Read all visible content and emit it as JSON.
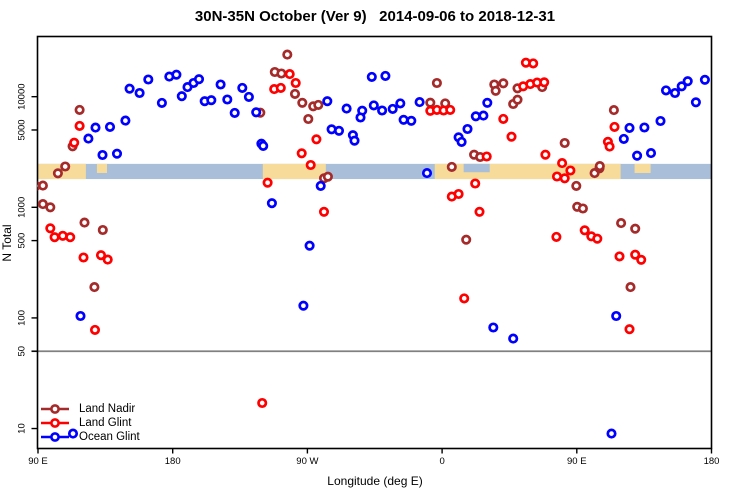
{
  "title": "30N-35N October (Ver 9)   2014-09-06 to 2018-12-31",
  "legend": {
    "items": [
      {
        "label": "Land Nadir",
        "color": "#A52A2A"
      },
      {
        "label": "Land Glint",
        "color": "#FF0000"
      },
      {
        "label": "Ocean Glint",
        "color": "#0000FF"
      }
    ]
  },
  "chart_data": {
    "type": "scatter",
    "title": "30N-35N October (Ver 9)   2014-09-06 to 2018-12-31",
    "xlabel": "Longitude (deg E)",
    "ylabel": "N Total",
    "x_axis": {
      "range_deg_e": [
        89.67,
        540
      ],
      "ticks": [
        {
          "lon": 90,
          "label": "90 E"
        },
        {
          "lon": 180,
          "label": "180"
        },
        {
          "lon": 270,
          "label": "90 W"
        },
        {
          "lon": 360,
          "label": "0"
        },
        {
          "lon": 450,
          "label": "90 E"
        },
        {
          "lon": 540,
          "label": "180"
        }
      ]
    },
    "y_axis": {
      "scale": "log",
      "range": [
        6.6,
        35000
      ],
      "ticks": [
        10000,
        5000,
        1000,
        500,
        100,
        50,
        10
      ]
    },
    "reference_line": {
      "n": 50,
      "color": "#808080"
    },
    "map_band": {
      "n_top": 2470,
      "n_bottom": 1800,
      "ocean_color": "#A9BFD9",
      "land_color": "#F6DB9B",
      "land_segments_deg_e": [
        {
          "from": 89.67,
          "to": 122.0,
          "partial": false
        },
        {
          "from": 129.4,
          "to": 136.1,
          "partial": true
        },
        {
          "from": 240.2,
          "to": 282.3,
          "partial": false
        },
        {
          "from": 355.1,
          "to": 479.3,
          "partial": false
        },
        {
          "from": 488.6,
          "to": 499.3,
          "partial": true
        }
      ],
      "sea_notches_deg_e": [
        {
          "from": 374.4,
          "to": 391.8
        }
      ]
    },
    "series": [
      {
        "name": "Land Nadir",
        "color": "#A52A2A",
        "points": [
          [
            117.8,
            7600
          ],
          [
            113.1,
            3560
          ],
          [
            108.2,
            2340
          ],
          [
            103.3,
            2030
          ],
          [
            93.3,
            1570
          ],
          [
            88.5,
            1560
          ],
          [
            93.3,
            1070
          ],
          [
            98.2,
            1000
          ],
          [
            121.1,
            727
          ],
          [
            133.3,
            623
          ],
          [
            127.7,
            190
          ],
          [
            256.6,
            24000
          ],
          [
            248.2,
            16700
          ],
          [
            252.6,
            16200
          ],
          [
            261.7,
            10600
          ],
          [
            266.6,
            8800
          ],
          [
            238.5,
            7160
          ],
          [
            273.9,
            8180
          ],
          [
            277.3,
            8420
          ],
          [
            270.6,
            6280
          ],
          [
            281.1,
            1830
          ],
          [
            283.7,
            1890
          ],
          [
            356.5,
            13300
          ],
          [
            352.1,
            8820
          ],
          [
            362.1,
            8700
          ],
          [
            381.4,
            2990
          ],
          [
            385.4,
            2850
          ],
          [
            366.5,
            2320
          ],
          [
            376.1,
            510
          ],
          [
            394.9,
            12900
          ],
          [
            400.9,
            13200
          ],
          [
            395.8,
            11300
          ],
          [
            410.4,
            11900
          ],
          [
            426.9,
            12200
          ],
          [
            407.5,
            8580
          ],
          [
            410.4,
            9400
          ],
          [
            441.9,
            3810
          ],
          [
            461.9,
            2040
          ],
          [
            465.2,
            2250
          ],
          [
            449.7,
            1560
          ],
          [
            450.3,
            1010
          ],
          [
            454.1,
            975
          ],
          [
            474.8,
            7560
          ],
          [
            465.4,
            2360
          ],
          [
            479.6,
            720
          ],
          [
            489.0,
            640
          ],
          [
            485.9,
            190
          ]
        ]
      },
      {
        "name": "Land Glint",
        "color": "#FF0000",
        "points": [
          [
            117.8,
            5440
          ],
          [
            114.2,
            3840
          ],
          [
            98.2,
            646
          ],
          [
            101.1,
            537
          ],
          [
            106.6,
            553
          ],
          [
            111.5,
            537
          ],
          [
            120.4,
            352
          ],
          [
            132.1,
            369
          ],
          [
            136.6,
            337
          ],
          [
            128.1,
            78
          ],
          [
            258.2,
            16000
          ],
          [
            262.2,
            13300
          ],
          [
            247.8,
            11700
          ],
          [
            252.2,
            12000
          ],
          [
            276.0,
            4120
          ],
          [
            266.2,
            3080
          ],
          [
            272.2,
            2410
          ],
          [
            243.4,
            1670
          ],
          [
            281.1,
            910
          ],
          [
            239.8,
            17
          ],
          [
            352.1,
            7460
          ],
          [
            356.5,
            7600
          ],
          [
            361.0,
            7500
          ],
          [
            365.4,
            7600
          ],
          [
            389.8,
            2880
          ],
          [
            382.1,
            1640
          ],
          [
            366.5,
            1250
          ],
          [
            371.0,
            1320
          ],
          [
            385.0,
            910
          ],
          [
            374.8,
            150
          ],
          [
            416.0,
            20300
          ],
          [
            420.9,
            20000
          ],
          [
            414.2,
            12400
          ],
          [
            418.9,
            13000
          ],
          [
            423.5,
            13400
          ],
          [
            428.2,
            13500
          ],
          [
            400.9,
            6300
          ],
          [
            406.4,
            4350
          ],
          [
            429.0,
            2990
          ],
          [
            440.2,
            2510
          ],
          [
            445.7,
            2150
          ],
          [
            441.9,
            1830
          ],
          [
            436.8,
            1900
          ],
          [
            436.4,
            540
          ],
          [
            455.3,
            620
          ],
          [
            459.7,
            547
          ],
          [
            463.7,
            520
          ],
          [
            475.2,
            5330
          ],
          [
            470.8,
            3910
          ],
          [
            471.9,
            3540
          ],
          [
            478.5,
            360
          ],
          [
            489.0,
            373
          ],
          [
            493.0,
            335
          ],
          [
            485.2,
            79
          ]
        ]
      },
      {
        "name": "Ocean Glint",
        "color": "#0000FF",
        "points": [
          [
            151.2,
            11800
          ],
          [
            157.9,
            10800
          ],
          [
            128.4,
            5250
          ],
          [
            138.1,
            5330
          ],
          [
            148.4,
            6080
          ],
          [
            123.7,
            4180
          ],
          [
            133.1,
            2970
          ],
          [
            142.8,
            3050
          ],
          [
            118.4,
            104
          ],
          [
            113.4,
            9
          ],
          [
            163.7,
            14300
          ],
          [
            177.7,
            15200
          ],
          [
            182.5,
            15800
          ],
          [
            189.9,
            12200
          ],
          [
            193.9,
            13300
          ],
          [
            197.6,
            14400
          ],
          [
            172.8,
            8790
          ],
          [
            186.1,
            10100
          ],
          [
            201.4,
            9100
          ],
          [
            205.8,
            9290
          ],
          [
            212.0,
            12900
          ],
          [
            216.5,
            9430
          ],
          [
            221.4,
            7130
          ],
          [
            226.5,
            12000
          ],
          [
            230.9,
            9960
          ],
          [
            235.8,
            7230
          ],
          [
            239.3,
            3760
          ],
          [
            283.3,
            9100
          ],
          [
            296.2,
            7800
          ],
          [
            306.6,
            7470
          ],
          [
            305.5,
            6480
          ],
          [
            286.2,
            5070
          ],
          [
            291.1,
            4920
          ],
          [
            300.4,
            4490
          ],
          [
            301.5,
            4000
          ],
          [
            240.5,
            3590
          ],
          [
            278.9,
            1560
          ],
          [
            246.3,
            1090
          ],
          [
            271.5,
            450
          ],
          [
            267.3,
            129
          ],
          [
            313.0,
            15100
          ],
          [
            322.1,
            15400
          ],
          [
            314.4,
            8340
          ],
          [
            319.9,
            7500
          ],
          [
            327.0,
            7760
          ],
          [
            332.1,
            8700
          ],
          [
            345.0,
            8940
          ],
          [
            334.3,
            6180
          ],
          [
            339.4,
            6050
          ],
          [
            382.5,
            6650
          ],
          [
            387.6,
            6740
          ],
          [
            377.0,
            5100
          ],
          [
            371.0,
            4290
          ],
          [
            373.0,
            3900
          ],
          [
            349.9,
            2040
          ],
          [
            390.2,
            8800
          ],
          [
            394.2,
            82
          ],
          [
            407.5,
            65
          ],
          [
            509.6,
            11400
          ],
          [
            515.6,
            10800
          ],
          [
            520.1,
            12400
          ],
          [
            524.1,
            13800
          ],
          [
            535.6,
            14200
          ],
          [
            529.6,
            8890
          ],
          [
            485.2,
            5220
          ],
          [
            495.2,
            5260
          ],
          [
            505.9,
            6030
          ],
          [
            481.4,
            4150
          ],
          [
            490.3,
            2930
          ],
          [
            499.6,
            3090
          ],
          [
            476.3,
            104
          ],
          [
            473.2,
            9
          ]
        ]
      }
    ]
  }
}
